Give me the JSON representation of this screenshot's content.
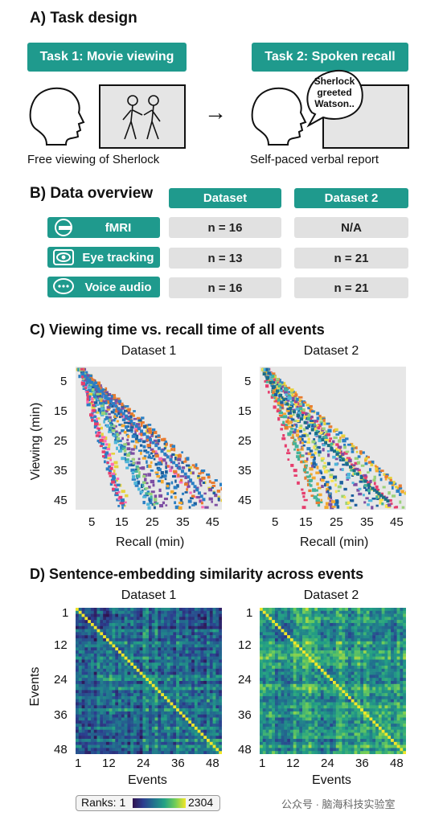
{
  "section_a": {
    "title": "A) Task design",
    "task1_label": "Task 1: Movie viewing",
    "task2_label": "Task 2: Spoken recall",
    "bubble_lines": [
      "Sherlock",
      "greeted",
      "Watson.."
    ],
    "caption1": "Free viewing of Sherlock",
    "caption2": "Self-paced verbal report",
    "arrow": "→"
  },
  "section_b": {
    "title": "B) Data overview",
    "col1": "Dataset",
    "col2": "Dataset 2",
    "rows": [
      {
        "label": "fMRI",
        "icon": "mri-scanner-icon",
        "v1": "n = 16",
        "v2": "N/A"
      },
      {
        "label": "Eye tracking",
        "icon": "eye-icon",
        "v1": "n = 13",
        "v2": "n = 21"
      },
      {
        "label": "Voice audio",
        "icon": "speech-bubble-icon",
        "v1": "n = 16",
        "v2": "n = 21"
      }
    ]
  },
  "section_c": {
    "title": "C) Viewing time vs. recall time of all events",
    "panel1": "Dataset 1",
    "panel2": "Dataset 2",
    "ylabel": "Viewing (min)",
    "xlabel": "Recall (min)",
    "yticks": [
      "5",
      "15",
      "25",
      "35",
      "45"
    ],
    "xticks": [
      "5",
      "15",
      "25",
      "35",
      "45"
    ]
  },
  "section_d": {
    "title": "D) Sentence-embedding similarity across events",
    "panel1": "Dataset 1",
    "panel2": "Dataset 2",
    "ylabel": "Events",
    "xlabel": "Events",
    "yticks": [
      "1",
      "12",
      "24",
      "36",
      "48"
    ],
    "xticks": [
      "1",
      "12",
      "24",
      "36",
      "48"
    ],
    "colorbar_label": "Ranks: 1",
    "colorbar_max": "2304"
  },
  "watermark": "公众号 · 脑海科技实验室",
  "chart_data": [
    {
      "type": "scatter",
      "title": "Dataset 1",
      "xlabel": "Recall (min)",
      "ylabel": "Viewing (min)",
      "xlim": [
        0,
        50
      ],
      "ylim": [
        0,
        50
      ],
      "note_description": "",
      "series": [
        {
          "x": [
            2,
            8,
            15,
            22,
            30,
            38,
            44
          ],
          "y": [
            2,
            8,
            15,
            22,
            30,
            38,
            47
          ]
        },
        {
          "x": [
            1,
            5,
            10,
            15,
            20,
            25
          ],
          "y": [
            3,
            12,
            22,
            32,
            40,
            47
          ]
        }
      ]
    },
    {
      "type": "scatter",
      "title": "Dataset 2",
      "xlabel": "Recall (min)",
      "ylabel": "Viewing (min)",
      "xlim": [
        0,
        50
      ],
      "ylim": [
        0,
        50
      ],
      "series": [
        {
          "x": [
            1,
            10,
            20,
            28,
            38,
            44
          ],
          "y": [
            2,
            14,
            24,
            32,
            42,
            47
          ]
        },
        {
          "x": [
            1,
            5,
            10,
            14,
            18
          ],
          "y": [
            3,
            15,
            25,
            38,
            47
          ]
        }
      ]
    },
    {
      "type": "heatmap",
      "title": "Dataset 1",
      "xlabel": "Events",
      "ylabel": "Events",
      "range": [
        1,
        2304
      ],
      "size": 48
    },
    {
      "type": "heatmap",
      "title": "Dataset 2",
      "xlabel": "Events",
      "ylabel": "Events",
      "range": [
        1,
        2304
      ],
      "size": 48
    }
  ]
}
